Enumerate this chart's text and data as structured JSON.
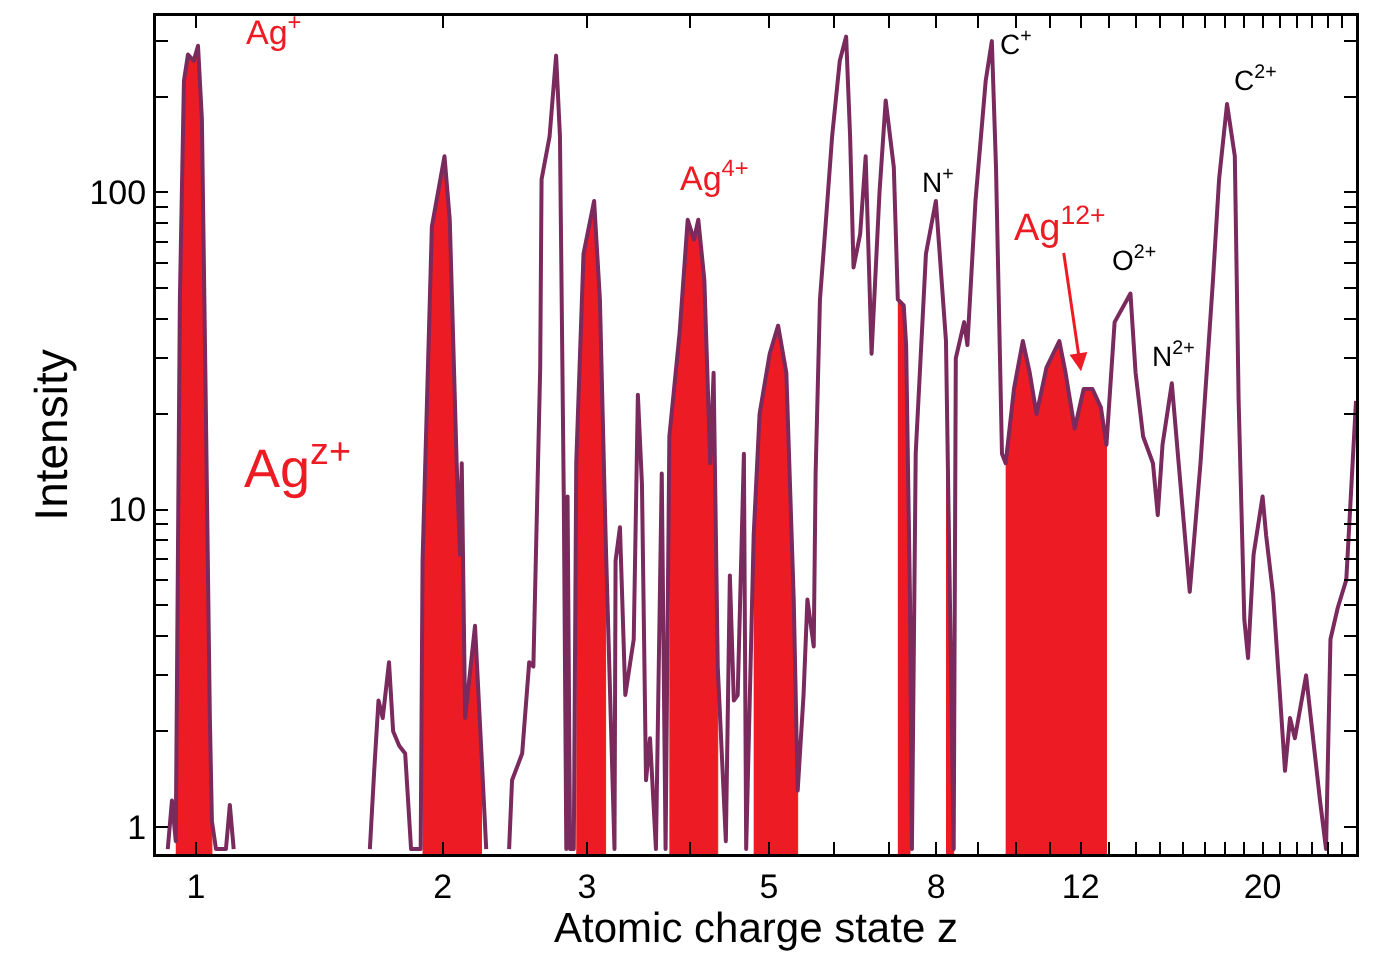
{
  "chart_data": {
    "type": "line",
    "xlabel": "Atomic charge state z",
    "ylabel": "Intensity",
    "log": "xy",
    "grid": false,
    "xlim": [
      0.894,
      26.0
    ],
    "ylim": [
      0.82,
      360
    ],
    "xticks": [
      1,
      2,
      3,
      {
        "value": 4,
        "label": null
      },
      5,
      {
        "value": 6,
        "label": null
      },
      {
        "value": 7,
        "label": null
      },
      8,
      {
        "value": 9,
        "label": null
      },
      {
        "value": 10,
        "label": null
      },
      {
        "value": 11,
        "label": null
      },
      12,
      {
        "value": 13,
        "label": null
      },
      {
        "value": 14,
        "label": null
      },
      {
        "value": 15,
        "label": null
      },
      {
        "value": 16,
        "label": null
      },
      {
        "value": 17,
        "label": null
      },
      {
        "value": 18,
        "label": null
      },
      {
        "value": 19,
        "label": null
      },
      20,
      {
        "value": 21,
        "label": null
      },
      {
        "value": 22,
        "label": null
      },
      {
        "value": 23,
        "label": null
      },
      {
        "value": 24,
        "label": null
      },
      {
        "value": 25,
        "label": null
      }
    ],
    "yticks": [
      1,
      {
        "value": 2,
        "label": null
      },
      {
        "value": 3,
        "label": null
      },
      {
        "value": 4,
        "label": null
      },
      {
        "value": 5,
        "label": null
      },
      {
        "value": 6,
        "label": null
      },
      {
        "value": 7,
        "label": null
      },
      {
        "value": 8,
        "label": null
      },
      {
        "value": 9,
        "label": null
      },
      10,
      {
        "value": 20,
        "label": null
      },
      {
        "value": 30,
        "label": null
      },
      {
        "value": 40,
        "label": null
      },
      {
        "value": 50,
        "label": null
      },
      {
        "value": 60,
        "label": null
      },
      {
        "value": 70,
        "label": null
      },
      {
        "value": 80,
        "label": null
      },
      {
        "value": 90,
        "label": null
      },
      100,
      {
        "value": 200,
        "label": null
      },
      {
        "value": 300,
        "label": null
      }
    ],
    "annotations": [
      "Ag$^{+}$",
      "Ag$^{4+}$",
      {
        "text": "Ag$^{12+}$",
        "x": 12.1,
        "y": 24
      },
      "Ag$^{z+}$",
      "N$^{+}$",
      "C$^{+}$",
      "O$^{2+}$",
      "N$^{2+}$",
      "C$^{2+}$"
    ],
    "series": [
      {
        "type": "area",
        "color": "#ed1c24",
        "x": [
          0.945,
          0.956,
          0.967,
          0.978,
          0.994,
          1.006,
          1.017,
          1.028,
          1.04,
          1.046
        ],
        "values": [
          0.9,
          46,
          225,
          272,
          260,
          290,
          170,
          22,
          2.2,
          1.04
        ]
      },
      {
        "type": "area",
        "color": "#ed1c24",
        "x": [
          1.89,
          1.94,
          2.01,
          2.04,
          2.08,
          2.1,
          2.11,
          2.13,
          2.19,
          2.23
        ],
        "values": [
          6.9,
          78,
          130,
          82,
          14,
          7.2,
          14,
          2.2,
          4.3,
          1.7
        ]
      },
      {
        "type": "area",
        "color": "#ed1c24",
        "x": [
          2.91,
          2.97,
          3.06,
          3.11,
          3.16
        ],
        "values": [
          14,
          64,
          94,
          46,
          8.3
        ]
      },
      {
        "type": "area",
        "color": "#ed1c24",
        "x": [
          3.78,
          3.89,
          3.98,
          4.05,
          4.1,
          4.17,
          4.24,
          4.28,
          4.33
        ],
        "values": [
          17,
          36,
          82,
          71,
          82,
          53,
          14,
          27,
          3.2
        ]
      },
      {
        "type": "area",
        "color": "#ed1c24",
        "x": [
          4.79,
          4.87,
          5.01,
          5.13,
          5.25,
          5.36,
          5.42
        ],
        "values": [
          8.3,
          20,
          31,
          38,
          27,
          5.2,
          1.3
        ]
      },
      {
        "type": "area",
        "color": "#ed1c24",
        "x": [
          7.18,
          7.3,
          7.35,
          7.43
        ],
        "values": [
          46,
          44,
          33,
          5.2
        ]
      },
      {
        "type": "area",
        "color": "#ed1c24",
        "x": [
          8.22,
          8.4
        ],
        "values": [
          34,
          0.85
        ]
      },
      {
        "type": "area",
        "color": "#ed1c24",
        "x": [
          9.72,
          9.95,
          10.2,
          10.4,
          10.6,
          10.9,
          11.3,
          11.5,
          11.8,
          12.1,
          12.4,
          12.7,
          12.9
        ],
        "values": [
          14,
          24,
          34,
          27,
          20,
          28,
          34,
          27,
          18,
          24,
          24,
          21,
          16
        ]
      },
      {
        "color": "#7b2a5e",
        "x": [
          0.924,
          0.935,
          0.945,
          0.956,
          0.967,
          0.978,
          0.994,
          1.006,
          1.017,
          1.028,
          1.04,
          1.046,
          1.058,
          1.088,
          1.1,
          1.112,
          1.3,
          1.63,
          1.65,
          1.67,
          1.69,
          1.72,
          1.74,
          1.77,
          1.8,
          1.83,
          1.88,
          1.89,
          1.94,
          2.01,
          2.04,
          2.08,
          2.1,
          2.11,
          2.13,
          2.19,
          2.23,
          2.26,
          2.35,
          2.41,
          2.43,
          2.5,
          2.55,
          2.58,
          2.63,
          2.64,
          2.7,
          2.75,
          2.78,
          2.81,
          2.83,
          2.84,
          2.86,
          2.89,
          2.91,
          2.97,
          3.06,
          3.11,
          3.16,
          3.24,
          3.25,
          3.29,
          3.34,
          3.42,
          3.46,
          3.5,
          3.54,
          3.58,
          3.64,
          3.7,
          3.74,
          3.78,
          3.89,
          3.98,
          4.05,
          4.1,
          4.17,
          4.24,
          4.28,
          4.33,
          4.43,
          4.48,
          4.53,
          4.58,
          4.66,
          4.69,
          4.79,
          4.87,
          5.01,
          5.13,
          5.25,
          5.36,
          5.42,
          5.51,
          5.57,
          5.67,
          5.7,
          5.77,
          5.86,
          5.97,
          6.1,
          6.21,
          6.28,
          6.34,
          6.46,
          6.56,
          6.67,
          6.82,
          6.94,
          7.1,
          7.18,
          7.3,
          7.35,
          7.43,
          7.47,
          7.55,
          7.77,
          7.99,
          8.22,
          8.4,
          8.45,
          8.65,
          8.73,
          8.93,
          9.19,
          9.35,
          9.46,
          9.62,
          9.72,
          9.95,
          10.2,
          10.4,
          10.6,
          10.9,
          11.3,
          11.5,
          11.8,
          12.1,
          12.4,
          12.7,
          12.9,
          13.2,
          13.8,
          14.0,
          14.3,
          14.7,
          14.9,
          15.1,
          15.5,
          15.8,
          16.3,
          16.8,
          17.4,
          17.7,
          18.1,
          18.5,
          18.7,
          19.0,
          19.2,
          19.5,
          20.0,
          20.2,
          20.6,
          21.0,
          21.3,
          21.6,
          21.9,
          22.6,
          23.1,
          23.5,
          23.9,
          24.2,
          24.7,
          25.3,
          26.0
        ],
        "values": [
          0.85,
          1.21,
          0.9,
          46,
          225,
          272,
          260,
          290,
          170,
          22,
          2.2,
          1.04,
          0.85,
          0.85,
          1.17,
          0.85,
          null,
          0.85,
          1.5,
          2.5,
          2.2,
          3.3,
          2.0,
          1.8,
          1.7,
          0.85,
          0.85,
          6.9,
          78,
          130,
          82,
          14,
          7.2,
          14,
          2.2,
          4.3,
          1.7,
          0.85,
          null,
          0.85,
          1.4,
          1.7,
          3.3,
          3.2,
          28,
          110,
          150,
          270,
          150,
          11,
          0.85,
          11,
          0.85,
          0.85,
          14,
          64,
          94,
          46,
          8.3,
          0.85,
          6.9,
          8.8,
          2.6,
          3.9,
          23,
          12,
          1.4,
          1.9,
          0.85,
          13,
          0.85,
          17,
          36,
          82,
          71,
          82,
          53,
          14,
          27,
          3.2,
          0.9,
          6.2,
          2.5,
          2.6,
          15,
          0.85,
          8.3,
          20,
          31,
          38,
          27,
          5.2,
          1.3,
          2.6,
          5.2,
          3.7,
          13,
          46,
          78,
          150,
          260,
          310,
          150,
          58,
          74,
          130,
          31,
          100,
          195,
          120,
          46,
          44,
          33,
          5.2,
          0.85,
          15,
          64,
          94,
          34,
          0.85,
          30,
          39,
          33,
          94,
          225,
          300,
          120,
          15,
          14,
          24,
          34,
          27,
          20,
          28,
          34,
          27,
          18,
          24,
          24,
          21,
          16,
          39,
          48,
          27,
          17,
          14,
          9.6,
          16,
          25,
          14,
          5.5,
          14,
          53,
          110,
          190,
          130,
          22,
          4.5,
          3.4,
          7.2,
          11,
          8.3,
          5.4,
          2.6,
          1.5,
          2.2,
          1.9,
          3.0,
          1.8,
          1.21,
          0.85,
          3.9,
          4.9,
          6.0,
          22
        ]
      }
    ]
  }
}
